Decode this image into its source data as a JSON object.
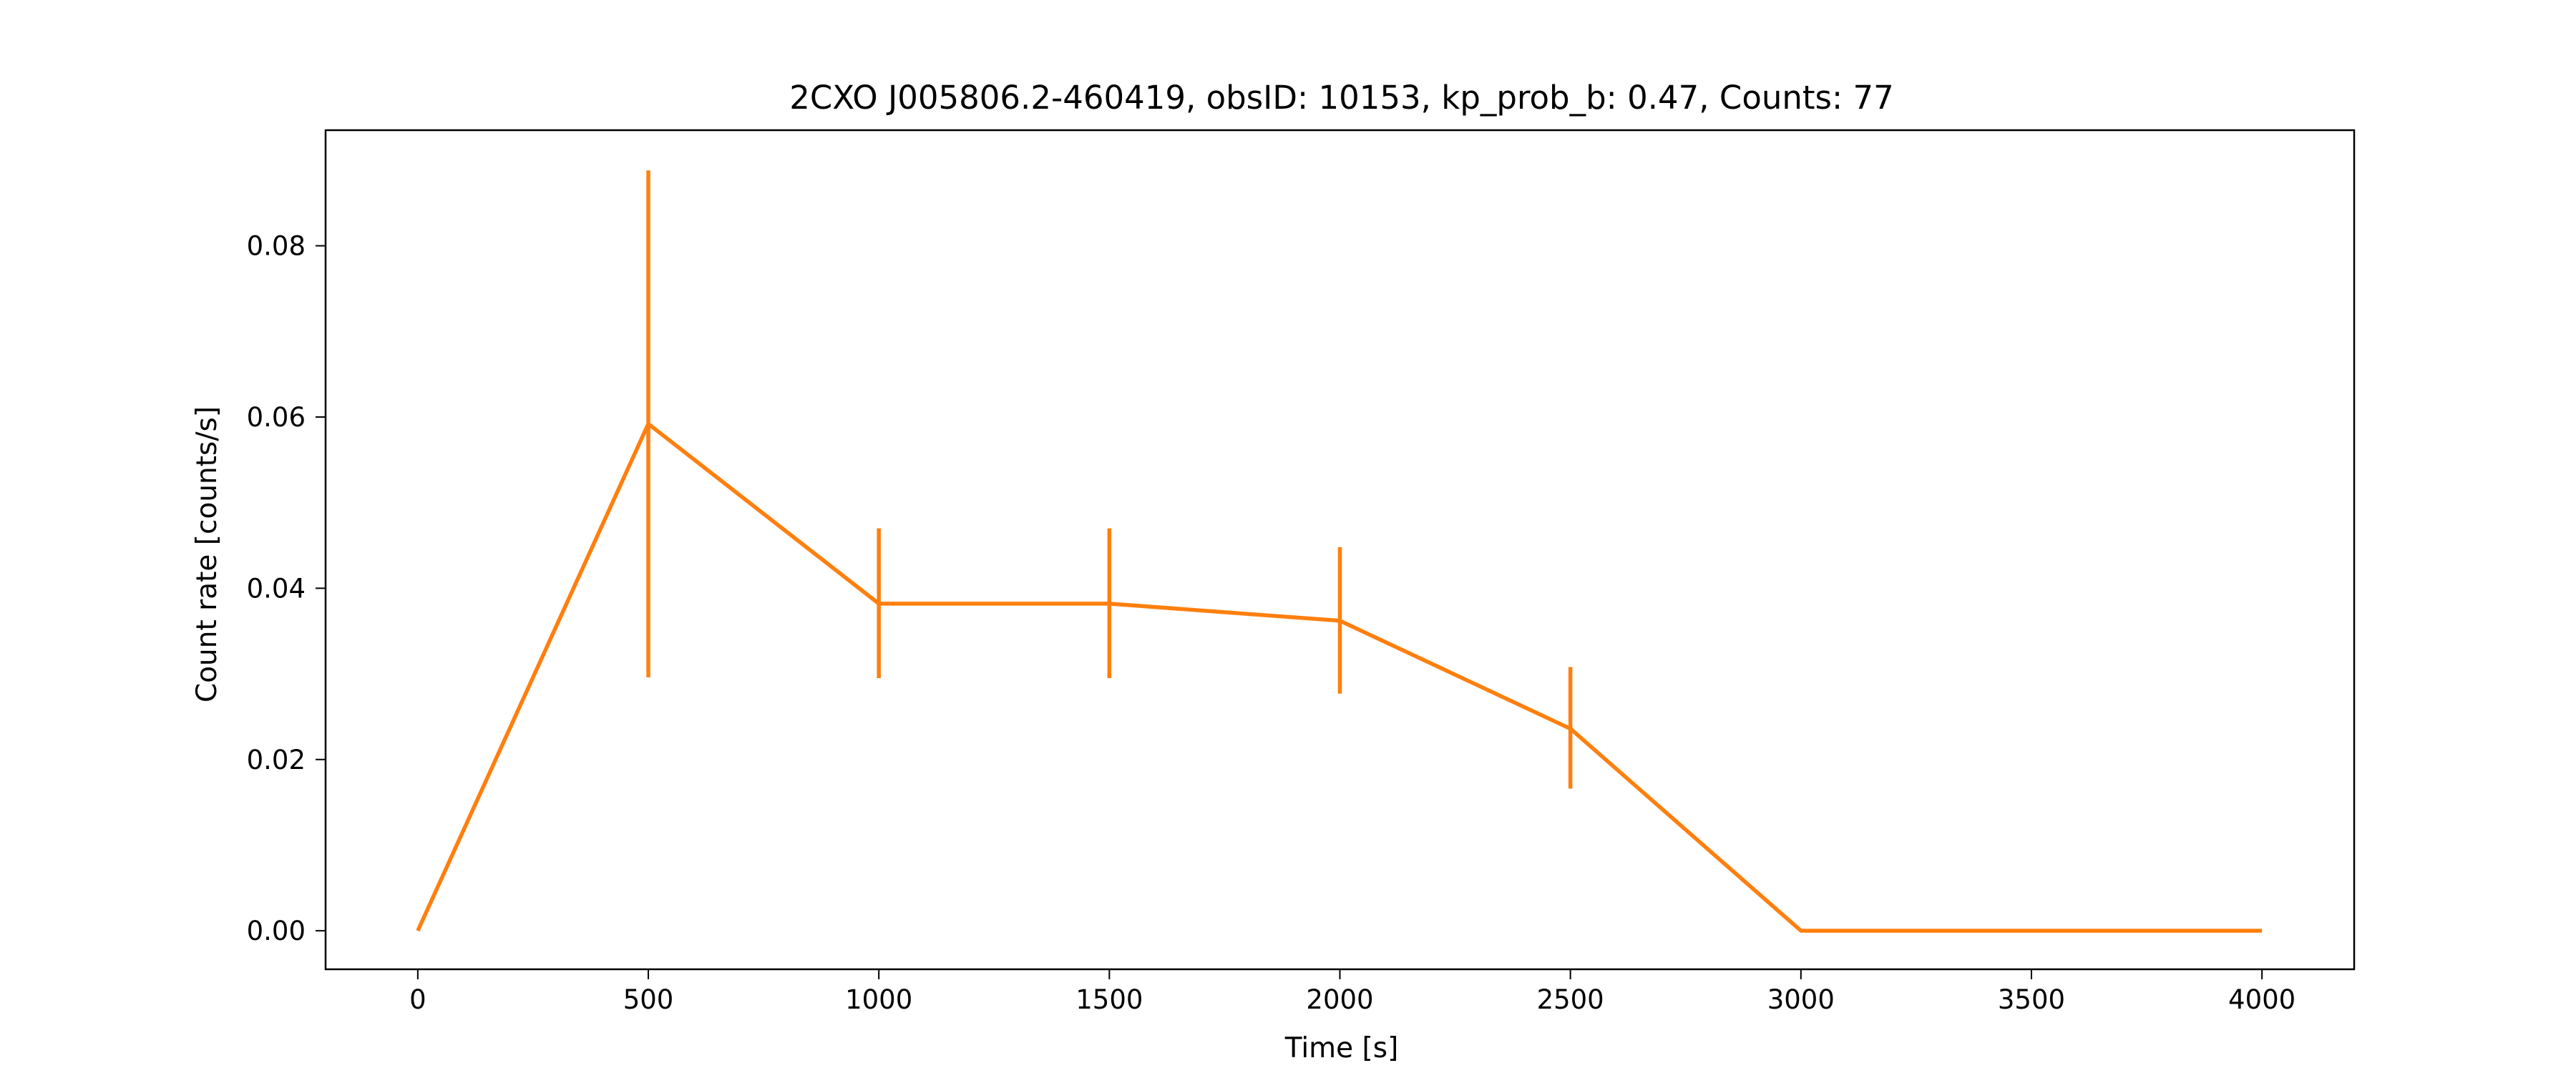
{
  "chart_data": {
    "type": "line",
    "title": "2CXO J005806.2-460419, obsID: 10153, kp_prob_b: 0.47, Counts: 77",
    "xlabel": "Time [s]",
    "ylabel": "Count rate [counts/s]",
    "xlim": [
      -200,
      4200
    ],
    "ylim": [
      -0.0045,
      0.0935
    ],
    "xticks": [
      0,
      500,
      1000,
      1500,
      2000,
      2500,
      3000,
      3500,
      4000
    ],
    "xtick_labels": [
      "0",
      "500",
      "1000",
      "1500",
      "2000",
      "2500",
      "3000",
      "3500",
      "4000"
    ],
    "yticks": [
      0.0,
      0.02,
      0.04,
      0.06,
      0.08
    ],
    "ytick_labels": [
      "0.00",
      "0.02",
      "0.04",
      "0.06",
      "0.08"
    ],
    "grid": false,
    "legend": false,
    "series": [
      {
        "color": "#ff7f0e",
        "x": [
          0,
          500,
          1000,
          1500,
          2000,
          2500,
          3000,
          4000
        ],
        "y": [
          0.0,
          0.0592,
          0.0382,
          0.0382,
          0.0362,
          0.0236,
          0.0,
          0.0
        ],
        "yerr_low": [
          null,
          0.0296,
          0.0295,
          0.0295,
          0.0277,
          0.0166,
          null,
          null
        ],
        "yerr_high": [
          null,
          0.0888,
          0.047,
          0.047,
          0.0448,
          0.0308,
          null,
          null
        ]
      }
    ]
  }
}
